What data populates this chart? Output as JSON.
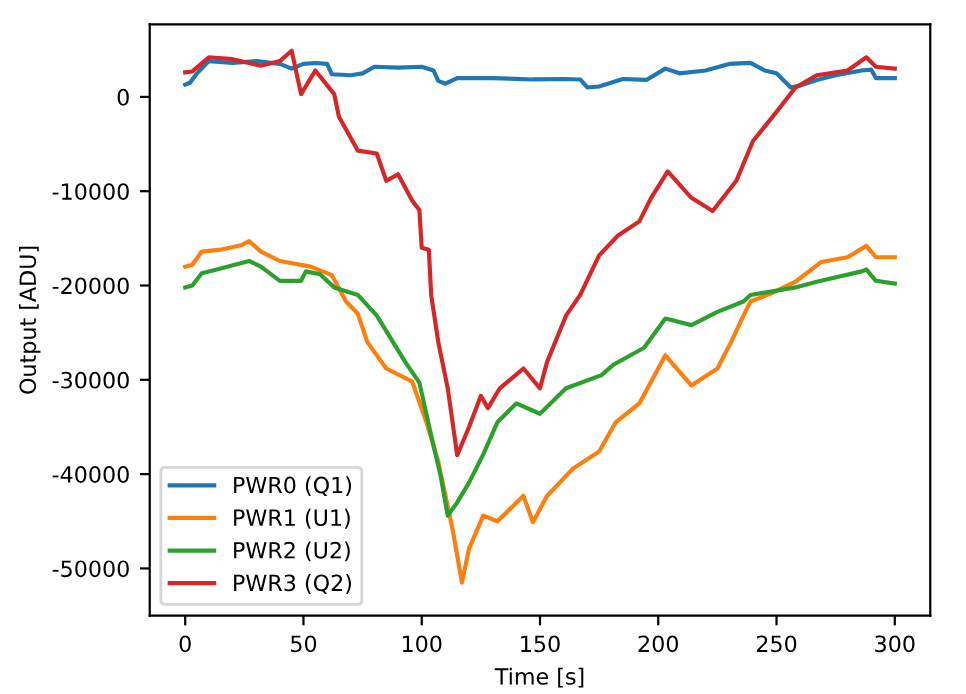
{
  "chart_data": {
    "type": "line",
    "xlabel": "Time [s]",
    "ylabel": "Output [ADU]",
    "xlim": [
      -15,
      315
    ],
    "ylim": [
      -55000,
      7700
    ],
    "xticks": [
      0,
      50,
      100,
      150,
      200,
      250,
      300
    ],
    "yticks": [
      -50000,
      -40000,
      -30000,
      -20000,
      -10000,
      0
    ],
    "grid": false,
    "legend": "bottom left",
    "line_style": "solid",
    "marker": "none",
    "series": [
      {
        "name": "PWR0 (Q1)",
        "color": "#1f77b4",
        "x": [
          0,
          2,
          5,
          10,
          20,
          30,
          40,
          45,
          50,
          55,
          60,
          62,
          70,
          75,
          80,
          90,
          100,
          105,
          107,
          110,
          115,
          130,
          147,
          160,
          167,
          170,
          175,
          185,
          195,
          203,
          209,
          220,
          230,
          239,
          245,
          250,
          256,
          260,
          267,
          275,
          286,
          290,
          292,
          300
        ],
        "values": [
          1300,
          1500,
          2500,
          3800,
          3600,
          3800,
          3500,
          3000,
          3500,
          3600,
          3500,
          2400,
          2300,
          2500,
          3200,
          3100,
          3200,
          2800,
          1700,
          1400,
          2000,
          2000,
          1850,
          1900,
          1850,
          1000,
          1100,
          1900,
          1800,
          3000,
          2500,
          2800,
          3500,
          3600,
          2800,
          2500,
          1000,
          1200,
          1800,
          2300,
          2800,
          2900,
          2000,
          2000
        ]
      },
      {
        "name": "PWR1 (U1)",
        "color": "#ff7f0e",
        "x": [
          0,
          3,
          7,
          15,
          24,
          27,
          32,
          40,
          53,
          62,
          68,
          73,
          77,
          85,
          96,
          102,
          107,
          113,
          117,
          120,
          126,
          132,
          143,
          147,
          153,
          164,
          175,
          182,
          192,
          203,
          214,
          225,
          231,
          236,
          239,
          248,
          258,
          269,
          280,
          288,
          292,
          300
        ],
        "values": [
          -18000,
          -17800,
          -16400,
          -16200,
          -15700,
          -15300,
          -16400,
          -17400,
          -18000,
          -18900,
          -21700,
          -23000,
          -26000,
          -28800,
          -30200,
          -34500,
          -38700,
          -45800,
          -51500,
          -47900,
          -44400,
          -45000,
          -42300,
          -45100,
          -42300,
          -39400,
          -37600,
          -34500,
          -32500,
          -27400,
          -30600,
          -28800,
          -25900,
          -23200,
          -21700,
          -20800,
          -19600,
          -17500,
          -17000,
          -15800,
          -17000,
          -17000
        ]
      },
      {
        "name": "PWR2 (U2)",
        "color": "#2ca02c",
        "x": [
          0,
          3,
          7,
          15,
          27,
          32,
          40,
          49,
          51,
          57,
          63,
          73,
          81,
          93,
          99,
          104,
          108,
          111,
          115,
          120,
          126,
          132,
          140,
          150,
          161,
          176,
          181,
          194,
          203,
          214,
          225,
          236,
          239,
          258,
          267,
          286,
          288,
          292,
          300
        ],
        "values": [
          -20200,
          -20000,
          -18700,
          -18200,
          -17400,
          -18000,
          -19500,
          -19500,
          -18500,
          -18800,
          -20200,
          -21000,
          -23200,
          -28100,
          -30300,
          -35900,
          -40200,
          -44400,
          -43000,
          -40900,
          -37900,
          -34500,
          -32500,
          -33600,
          -30900,
          -29500,
          -28400,
          -26600,
          -23500,
          -24200,
          -22800,
          -21700,
          -21000,
          -20200,
          -19600,
          -18500,
          -18300,
          -19500,
          -19800
        ]
      },
      {
        "name": "PWR3 (Q2)",
        "color": "#d62728",
        "x": [
          0,
          3,
          10,
          20,
          32,
          40,
          45,
          49,
          55,
          63,
          65,
          73,
          81,
          85,
          90,
          96,
          99,
          100,
          103,
          104,
          107,
          111,
          115,
          120,
          125,
          128,
          133,
          143,
          150,
          153,
          161,
          167,
          175,
          183,
          192,
          197,
          204,
          214,
          223,
          233,
          240,
          249,
          258,
          267,
          280,
          288,
          292,
          300
        ],
        "values": [
          2600,
          2700,
          4200,
          4000,
          3300,
          3800,
          4900,
          300,
          2800,
          300,
          -2100,
          -5700,
          -6000,
          -8900,
          -8200,
          -11000,
          -12000,
          -16000,
          -16200,
          -21000,
          -26000,
          -30900,
          -38000,
          -35000,
          -31700,
          -33000,
          -30900,
          -28800,
          -30900,
          -28100,
          -23200,
          -21000,
          -16800,
          -14700,
          -13200,
          -10700,
          -7900,
          -10700,
          -12100,
          -8900,
          -4700,
          -1900,
          1000,
          2300,
          2800,
          4200,
          3200,
          3000
        ]
      }
    ]
  }
}
